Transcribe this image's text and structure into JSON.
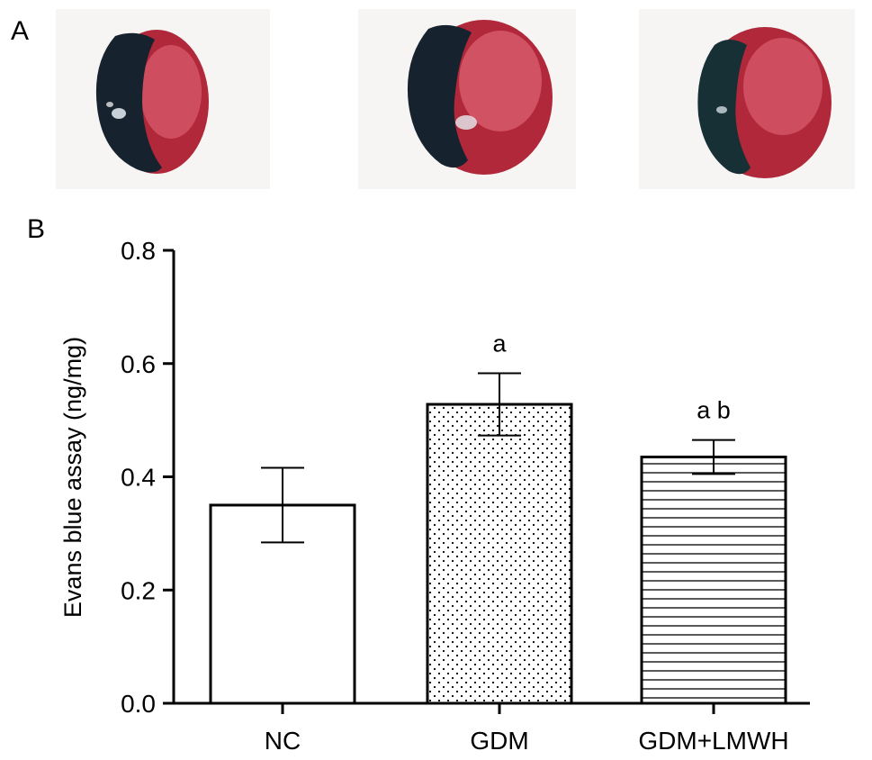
{
  "panel_a": {
    "label": "A"
  },
  "panel_b": {
    "label": "B"
  },
  "chart_data": {
    "type": "bar",
    "categories": [
      "NC",
      "GDM",
      "GDM+LMWH"
    ],
    "values": [
      0.35,
      0.528,
      0.435
    ],
    "errors": [
      0.066,
      0.055,
      0.03
    ],
    "patterns": [
      "none",
      "dots",
      "hlines"
    ],
    "annotations": [
      "",
      "a",
      "a b"
    ],
    "ylabel": "Evans blue assay (ng/mg)",
    "ylim": [
      0,
      0.8
    ],
    "yticks": [
      0.0,
      0.2,
      0.4,
      0.6,
      0.8
    ],
    "ytick_labels": [
      "0.0",
      "0.2",
      "0.4",
      "0.6",
      "0.8"
    ],
    "grid": false
  },
  "colors": {
    "bar_fill": "#ffffff",
    "bar_stroke": "#000000",
    "heart_red": "#b0283a",
    "heart_pink": "#e2687a",
    "heart_dark": "#16222e",
    "photo_bg": "#f7f5f4"
  }
}
